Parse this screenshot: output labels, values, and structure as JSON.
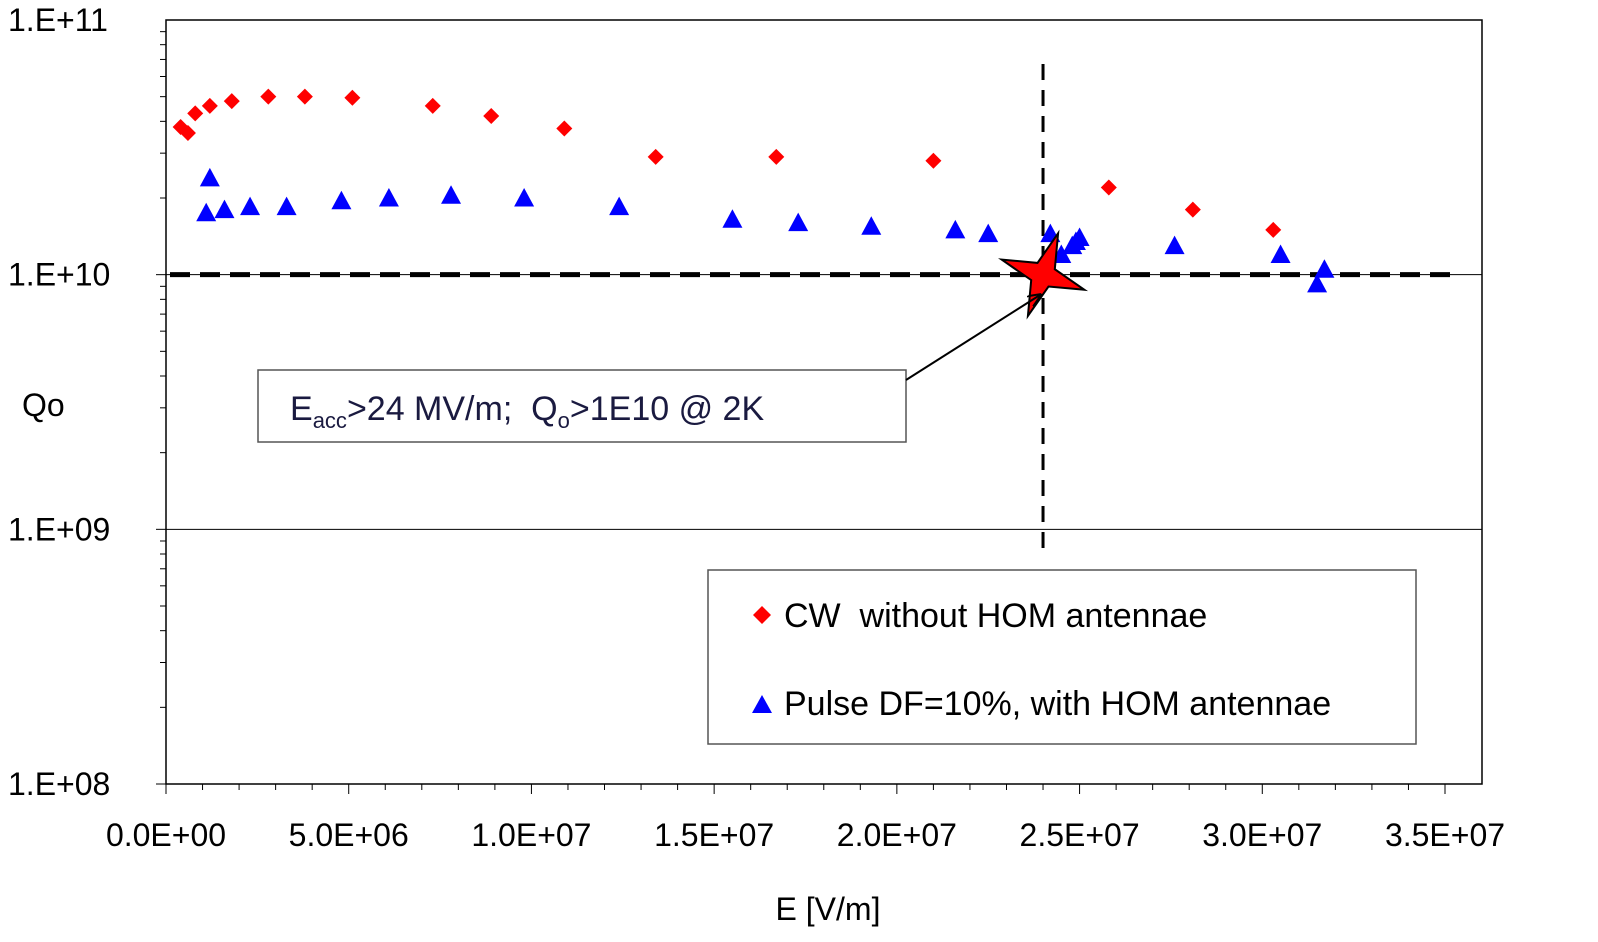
{
  "chart_data": {
    "type": "scatter",
    "title": "",
    "xlabel": "E [V/m]",
    "ylabel": "Qo",
    "xlim": [
      0,
      35000000
    ],
    "ylim": [
      100000000,
      100000000000
    ],
    "yscale": "log",
    "x_ticks": [
      "0.0E+00",
      "5.0E+06",
      "1.0E+07",
      "1.5E+07",
      "2.0E+07",
      "2.5E+07",
      "3.0E+07",
      "3.5E+07"
    ],
    "y_ticks": [
      "1.E+11",
      "1.E+10",
      "1.E+09",
      "1.E+08"
    ],
    "grid": "horizontal major",
    "legend_position": "bottom-right",
    "colors": {
      "cw": "#ff0000",
      "pulse": "#0000ff",
      "star": "#ff0000"
    },
    "series": [
      {
        "name": "CW  without HOM antennae",
        "marker": "diamond",
        "color": "#ff0000",
        "points": [
          [
            400000,
            38000000000.0
          ],
          [
            600000,
            36000000000.0
          ],
          [
            800000,
            43000000000.0
          ],
          [
            1200000,
            46000000000.0
          ],
          [
            1800000,
            48000000000.0
          ],
          [
            2800000,
            50000000000.0
          ],
          [
            3800000,
            50000000000.0
          ],
          [
            5100000,
            49500000000.0
          ],
          [
            7300000,
            46000000000.0
          ],
          [
            8900000,
            42000000000.0
          ],
          [
            10900000,
            37500000000.0
          ],
          [
            13400000,
            29000000000.0
          ],
          [
            16700000,
            29000000000.0
          ],
          [
            21000000,
            28000000000.0
          ],
          [
            25800000,
            22000000000.0
          ],
          [
            28100000,
            18000000000.0
          ],
          [
            30300000,
            15000000000.0
          ]
        ]
      },
      {
        "name": "Pulse DF=10%, with HOM antennae",
        "marker": "triangle",
        "color": "#0000ff",
        "points": [
          [
            1100000,
            17500000000.0
          ],
          [
            1200000,
            24000000000.0
          ],
          [
            1600000,
            18000000000.0
          ],
          [
            2300000,
            18500000000.0
          ],
          [
            3300000,
            18500000000.0
          ],
          [
            4800000,
            19500000000.0
          ],
          [
            6100000,
            20000000000.0
          ],
          [
            7800000,
            20500000000.0
          ],
          [
            9800000,
            20000000000.0
          ],
          [
            12400000,
            18500000000.0
          ],
          [
            15500000,
            16500000000.0
          ],
          [
            17300000,
            16000000000.0
          ],
          [
            19300000,
            15500000000.0
          ],
          [
            21600000,
            15000000000.0
          ],
          [
            22500000,
            14500000000.0
          ],
          [
            24200000,
            14500000000.0
          ],
          [
            24500000,
            12000000000.0
          ],
          [
            24800000,
            13000000000.0
          ],
          [
            24900000,
            13500000000.0
          ],
          [
            25000000,
            14000000000.0
          ],
          [
            27600000,
            13000000000.0
          ],
          [
            30500000,
            12000000000.0
          ],
          [
            31500000,
            9200000000.0
          ],
          [
            31700000,
            10500000000.0
          ]
        ]
      }
    ],
    "reference_lines": {
      "q_threshold": 10000000000.0,
      "e_threshold": 24000000
    },
    "target_point": [
      24000000,
      10000000000.0
    ],
    "annotation": {
      "parts": [
        {
          "text": "E",
          "sub": false
        },
        {
          "text": "acc",
          "sub": true
        },
        {
          "text": ">24 MV/m;  Q",
          "sub": false
        },
        {
          "text": "o",
          "sub": true
        },
        {
          "text": ">1E10 @ 2K",
          "sub": false
        }
      ]
    }
  }
}
